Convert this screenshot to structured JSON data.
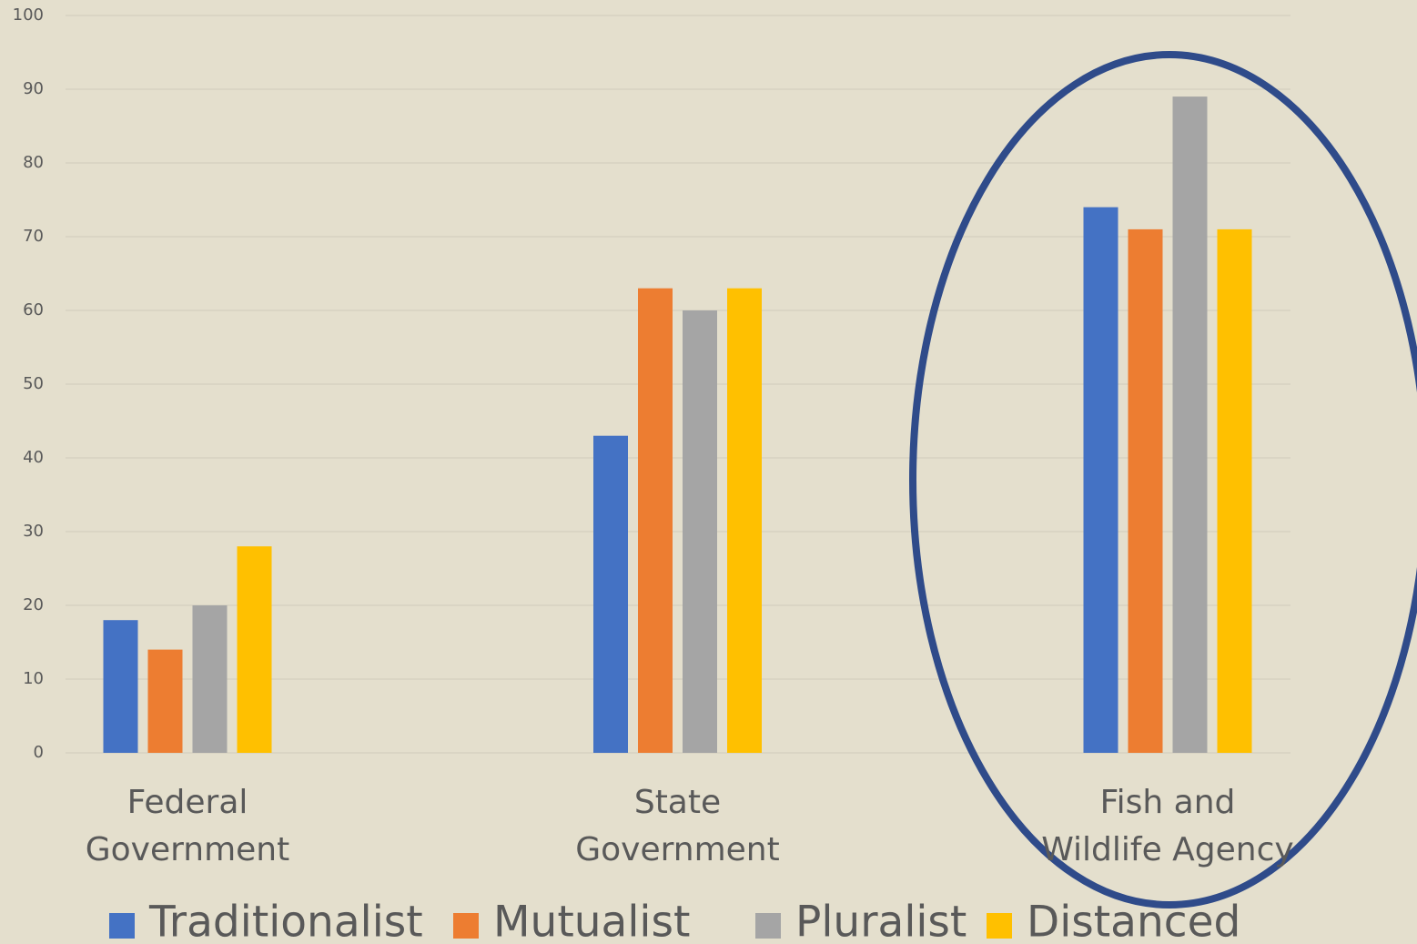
{
  "chart_data": {
    "type": "bar",
    "categories": [
      "Federal Government",
      "State Government",
      "Fish and Wildlife Agency"
    ],
    "series": [
      {
        "name": "Traditionalist",
        "color": "#4472c4",
        "values": [
          18,
          43,
          74
        ]
      },
      {
        "name": "Mutualist",
        "color": "#ed7d31",
        "values": [
          14,
          63,
          71
        ]
      },
      {
        "name": "Pluralist",
        "color": "#a5a5a5",
        "values": [
          20,
          60,
          89
        ]
      },
      {
        "name": "Distanced",
        "color": "#ffc000",
        "values": [
          28,
          63,
          71
        ]
      }
    ],
    "ylim": [
      0,
      100
    ],
    "yticks": [
      0,
      10,
      20,
      30,
      40,
      50,
      60,
      70,
      80,
      90,
      100
    ],
    "grid": true,
    "legend": "bottom"
  }
}
